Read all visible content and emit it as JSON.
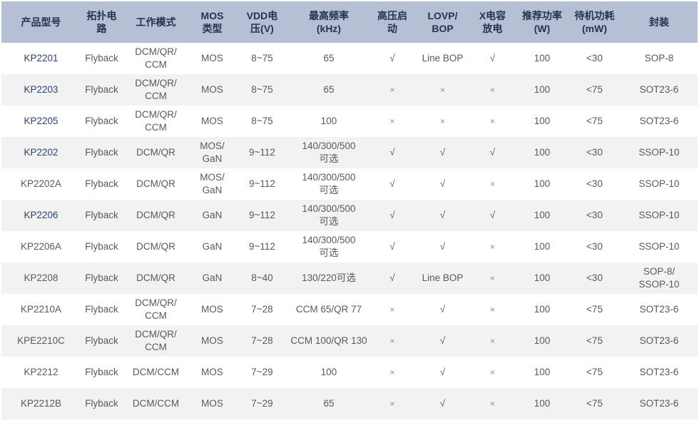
{
  "table": {
    "columns": [
      {
        "key": "model",
        "label": "产品型号"
      },
      {
        "key": "topology",
        "label": "拓扑电\n路"
      },
      {
        "key": "mode",
        "label": "工作模式"
      },
      {
        "key": "mos",
        "label": "MOS\n类型"
      },
      {
        "key": "vdd",
        "label": "VDD电\n压(V)"
      },
      {
        "key": "freq",
        "label": "最高频率\n(kHz)"
      },
      {
        "key": "hv_start",
        "label": "高压启\n动"
      },
      {
        "key": "lovp_bop",
        "label": "LOVP/\nBOP"
      },
      {
        "key": "xcap",
        "label": "X电容\n放电"
      },
      {
        "key": "power",
        "label": "推荐功率\n(W)"
      },
      {
        "key": "standby",
        "label": "待机功耗\n(mW)"
      },
      {
        "key": "package",
        "label": "封装"
      }
    ],
    "rows": [
      {
        "model": "KP2201",
        "model_highlight": true,
        "topology": "Flyback",
        "mode": "DCM/QR/\nCCM",
        "mos": "MOS",
        "vdd": "8~75",
        "freq": "65",
        "hv_start": "√",
        "lovp_bop": "Line BOP",
        "xcap": "√",
        "power": "100",
        "standby": "<30",
        "package": "SOP-8"
      },
      {
        "model": "KP2203",
        "model_highlight": true,
        "topology": "Flyback",
        "mode": "DCM/QR/\nCCM",
        "mos": "MOS",
        "vdd": "8~75",
        "freq": "65",
        "hv_start": "×",
        "lovp_bop": "×",
        "xcap": "×",
        "power": "100",
        "standby": "<75",
        "package": "SOT23-6"
      },
      {
        "model": "KP2205",
        "model_highlight": true,
        "topology": "Flyback",
        "mode": "DCM/QR/\nCCM",
        "mos": "MOS",
        "vdd": "8~75",
        "freq": "100",
        "hv_start": "×",
        "lovp_bop": "×",
        "xcap": "×",
        "power": "100",
        "standby": "<75",
        "package": "SOT23-6"
      },
      {
        "model": "KP2202",
        "model_highlight": true,
        "topology": "Flyback",
        "mode": "DCM/QR",
        "mos": "MOS/\nGaN",
        "vdd": "9~112",
        "freq": "140/300/500\n可选",
        "hv_start": "√",
        "lovp_bop": "√",
        "xcap": "√",
        "power": "100",
        "standby": "<30",
        "package": "SSOP-10"
      },
      {
        "model": "KP2202A",
        "model_highlight": false,
        "topology": "Flyback",
        "mode": "DCM/QR",
        "mos": "MOS/\nGaN",
        "vdd": "9~112",
        "freq": "140/300/500\n可选",
        "hv_start": "√",
        "lovp_bop": "√",
        "xcap": "×",
        "power": "100",
        "standby": "<30",
        "package": "SSOP-10"
      },
      {
        "model": "KP2206",
        "model_highlight": true,
        "topology": "Flyback",
        "mode": "DCM/QR",
        "mos": "GaN",
        "vdd": "9~112",
        "freq": "140/300/500\n可选",
        "hv_start": "√",
        "lovp_bop": "√",
        "xcap": "√",
        "power": "100",
        "standby": "<30",
        "package": "SSOP-10"
      },
      {
        "model": "KP2206A",
        "model_highlight": false,
        "topology": "Flyback",
        "mode": "DCM/QR",
        "mos": "GaN",
        "vdd": "9~112",
        "freq": "140/300/500\n可选",
        "hv_start": "√",
        "lovp_bop": "√",
        "xcap": "×",
        "power": "100",
        "standby": "<30",
        "package": "SSOP-10"
      },
      {
        "model": "KP2208",
        "model_highlight": false,
        "topology": "Flyback",
        "mode": "DCM/QR",
        "mos": "GaN",
        "vdd": "8~40",
        "freq": "130/220可选",
        "hv_start": "√",
        "lovp_bop": "Line BOP",
        "xcap": "×",
        "power": "100",
        "standby": "<30",
        "package": "SOP-8/\nSSOP-10"
      },
      {
        "model": "KP2210A",
        "model_highlight": false,
        "topology": "Flyback",
        "mode": "DCM/QR/\nCCM",
        "mos": "MOS",
        "vdd": "7~28",
        "freq": "CCM 65/QR 77",
        "hv_start": "×",
        "lovp_bop": "√",
        "xcap": "×",
        "power": "100",
        "standby": "<75",
        "package": "SOT23-6"
      },
      {
        "model": "KPE2210C",
        "model_highlight": false,
        "topology": "Flyback",
        "mode": "DCM/QR/\nCCM",
        "mos": "MOS",
        "vdd": "7~28",
        "freq": "CCM 100/QR 130",
        "hv_start": "×",
        "lovp_bop": "√",
        "xcap": "×",
        "power": "100",
        "standby": "<75",
        "package": "SOT23-6"
      },
      {
        "model": "KP2212",
        "model_highlight": false,
        "topology": "Flyback",
        "mode": "DCM/CCM",
        "mos": "MOS",
        "vdd": "7~29",
        "freq": "100",
        "hv_start": "×",
        "lovp_bop": "√",
        "xcap": "×",
        "power": "100",
        "standby": "<75",
        "package": "SOT23-6"
      },
      {
        "model": "KP2212B",
        "model_highlight": false,
        "topology": "Flyback",
        "mode": "DCM/CCM",
        "mos": "MOS",
        "vdd": "7~29",
        "freq": "65",
        "hv_start": "×",
        "lovp_bop": "√",
        "xcap": "×",
        "power": "100",
        "standby": "<75",
        "package": "SOT23-6"
      }
    ]
  },
  "colors": {
    "header_bg": "#b5c0d5",
    "header_text": "#263250",
    "stripe_bg": "#f2f2f2",
    "body_text": "#595959",
    "model_link_text": "#2e4170"
  }
}
